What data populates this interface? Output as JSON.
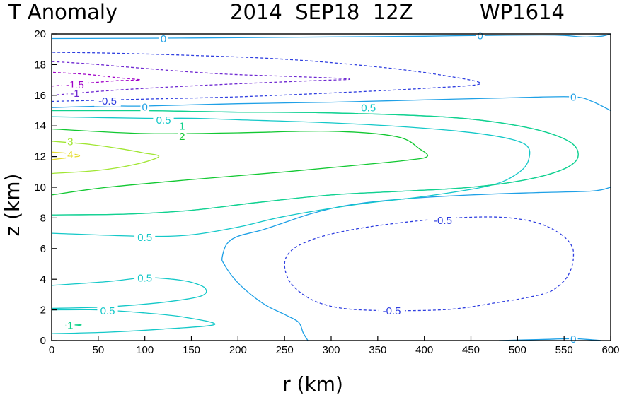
{
  "chart_data": {
    "type": "contour",
    "title": {
      "variable": "T Anomaly",
      "datetime": "2014  SEP18  12Z",
      "storm_id": "WP1614"
    },
    "xlabel": "r (km)",
    "ylabel": "z (km)",
    "xlim": [
      0,
      600
    ],
    "ylim": [
      0,
      20
    ],
    "x_ticks": [
      "0",
      "50",
      "100",
      "150",
      "200",
      "250",
      "300",
      "350",
      "400",
      "450",
      "500",
      "550",
      "600"
    ],
    "y_ticks": [
      "0",
      "2",
      "4",
      "6",
      "8",
      "10",
      "12",
      "14",
      "16",
      "18",
      "20"
    ],
    "colors": {
      "c_neg15": "#a000c8",
      "c_neg1": "#6e28d2",
      "c_neg05": "#2e3ee0",
      "c_0": "#1ea0e6",
      "c_05": "#14c8c8",
      "c_1": "#12d28c",
      "c_2": "#12c832",
      "c_3": "#a0e632",
      "c_4": "#e6dc32"
    },
    "contours": [
      {
        "level": -1.5,
        "color": "c_neg15",
        "dashed": true,
        "closed": false,
        "points": [
          [
            0,
            16.6
          ],
          [
            40,
            16.8
          ],
          [
            70,
            16.95
          ],
          [
            95,
            17.0
          ],
          [
            70,
            17.15
          ],
          [
            40,
            17.35
          ],
          [
            0,
            17.5
          ]
        ]
      },
      {
        "level": -1,
        "color": "c_neg1",
        "dashed": true,
        "closed": false,
        "points": [
          [
            0,
            16.0
          ],
          [
            60,
            16.3
          ],
          [
            130,
            16.55
          ],
          [
            200,
            16.75
          ],
          [
            280,
            16.95
          ],
          [
            320,
            17.05
          ],
          [
            270,
            17.2
          ],
          [
            180,
            17.4
          ],
          [
            100,
            17.75
          ],
          [
            40,
            18.05
          ],
          [
            0,
            18.2
          ]
        ]
      },
      {
        "level": -0.5,
        "color": "c_neg05",
        "dashed": true,
        "closed": false,
        "points": [
          [
            0,
            15.6
          ],
          [
            100,
            15.75
          ],
          [
            200,
            15.9
          ],
          [
            300,
            16.15
          ],
          [
            400,
            16.45
          ],
          [
            460,
            16.75
          ],
          [
            420,
            17.3
          ],
          [
            350,
            17.85
          ],
          [
            250,
            18.35
          ],
          [
            150,
            18.6
          ],
          [
            60,
            18.75
          ],
          [
            0,
            18.8
          ]
        ]
      },
      {
        "level": -0.5,
        "color": "c_neg05",
        "dashed": true,
        "closed": true,
        "points": [
          [
            250,
            5.0
          ],
          [
            256,
            5.8
          ],
          [
            272,
            6.4
          ],
          [
            300,
            6.95
          ],
          [
            350,
            7.5
          ],
          [
            420,
            7.95
          ],
          [
            480,
            8.05
          ],
          [
            520,
            7.7
          ],
          [
            545,
            7.0
          ],
          [
            558,
            6.2
          ],
          [
            560,
            5.4
          ],
          [
            557,
            4.6
          ],
          [
            550,
            3.9
          ],
          [
            535,
            3.2
          ],
          [
            510,
            2.8
          ],
          [
            480,
            2.5
          ],
          [
            430,
            2.05
          ],
          [
            370,
            1.95
          ],
          [
            320,
            2.05
          ],
          [
            290,
            2.4
          ],
          [
            270,
            3.0
          ],
          [
            255,
            3.9
          ]
        ]
      },
      {
        "level": 0,
        "color": "c_0",
        "dashed": false,
        "closed": false,
        "points": [
          [
            0,
            19.7
          ],
          [
            100,
            19.72
          ],
          [
            200,
            19.75
          ],
          [
            300,
            19.8
          ],
          [
            400,
            19.85
          ],
          [
            460,
            19.9
          ],
          [
            540,
            19.92
          ],
          [
            570,
            19.8
          ],
          [
            590,
            19.85
          ],
          [
            600,
            20.0
          ]
        ]
      },
      {
        "level": 0,
        "color": "c_0",
        "dashed": false,
        "closed": false,
        "points": [
          [
            0,
            15.2
          ],
          [
            60,
            15.3
          ],
          [
            100,
            15.3
          ],
          [
            200,
            15.45
          ],
          [
            300,
            15.55
          ],
          [
            400,
            15.7
          ],
          [
            500,
            15.85
          ],
          [
            560,
            15.9
          ],
          [
            580,
            15.6
          ],
          [
            600,
            15.0
          ]
        ]
      },
      {
        "level": 0,
        "color": "c_0",
        "dashed": false,
        "closed": false,
        "points": [
          [
            275,
            0.0
          ],
          [
            270,
            0.5
          ],
          [
            265,
            1.2
          ],
          [
            250,
            1.7
          ],
          [
            230,
            2.3
          ],
          [
            210,
            3.2
          ],
          [
            195,
            4.1
          ],
          [
            185,
            5.0
          ],
          [
            183,
            5.4
          ],
          [
            188,
            6.3
          ],
          [
            200,
            6.8
          ],
          [
            225,
            7.2
          ],
          [
            250,
            7.7
          ],
          [
            280,
            8.3
          ],
          [
            320,
            8.85
          ],
          [
            380,
            9.25
          ],
          [
            450,
            9.5
          ],
          [
            520,
            9.65
          ],
          [
            580,
            9.75
          ],
          [
            600,
            10.0
          ]
        ]
      },
      {
        "level": 0,
        "color": "c_0",
        "dashed": false,
        "closed": false,
        "points": [
          [
            480,
            0.0
          ],
          [
            530,
            0.08
          ],
          [
            560,
            0.12
          ],
          [
            580,
            0.05
          ],
          [
            590,
            0.0
          ]
        ]
      },
      {
        "level": 0.5,
        "color": "c_05",
        "dashed": false,
        "closed": false,
        "points": [
          [
            0,
            8.2
          ],
          [
            80,
            8.25
          ],
          [
            150,
            8.5
          ],
          [
            220,
            9.0
          ],
          [
            300,
            9.5
          ],
          [
            380,
            9.75
          ],
          [
            450,
            10.0
          ],
          [
            510,
            10.5
          ],
          [
            550,
            11.2
          ],
          [
            565,
            12.0
          ],
          [
            555,
            13.0
          ],
          [
            510,
            13.9
          ],
          [
            430,
            14.55
          ],
          [
            300,
            14.85
          ],
          [
            200,
            14.9
          ],
          [
            150,
            14.95
          ],
          [
            100,
            15.0
          ],
          [
            50,
            15.0
          ],
          [
            0,
            15.0
          ]
        ]
      },
      {
        "level": 0.5,
        "color": "c_05",
        "dashed": false,
        "closed": false,
        "points": [
          [
            0,
            7.0
          ],
          [
            100,
            6.8
          ],
          [
            150,
            6.9
          ],
          [
            200,
            7.4
          ],
          [
            250,
            8.1
          ],
          [
            330,
            8.9
          ],
          [
            400,
            9.4
          ],
          [
            470,
            10.1
          ],
          [
            500,
            10.9
          ],
          [
            512,
            11.8
          ],
          [
            508,
            12.8
          ],
          [
            470,
            13.4
          ],
          [
            400,
            13.85
          ],
          [
            300,
            14.2
          ],
          [
            200,
            14.4
          ],
          [
            150,
            14.5
          ],
          [
            100,
            14.5
          ],
          [
            0,
            14.6
          ]
        ]
      },
      {
        "level": 0.5,
        "color": "c_05",
        "dashed": false,
        "closed": false,
        "points": [
          [
            0,
            3.6
          ],
          [
            60,
            3.85
          ],
          [
            100,
            4.1
          ],
          [
            130,
            4.0
          ],
          [
            150,
            3.8
          ],
          [
            165,
            3.4
          ],
          [
            160,
            2.9
          ],
          [
            120,
            2.5
          ],
          [
            60,
            2.2
          ],
          [
            0,
            2.1
          ]
        ]
      },
      {
        "level": 0.5,
        "color": "c_05",
        "dashed": false,
        "closed": false,
        "points": [
          [
            0,
            2.0
          ],
          [
            50,
            2.0
          ],
          [
            100,
            1.8
          ],
          [
            140,
            1.55
          ],
          [
            175,
            1.05
          ],
          [
            120,
            0.75
          ],
          [
            60,
            0.55
          ],
          [
            0,
            0.45
          ]
        ]
      },
      {
        "level": 1,
        "color": "c_1",
        "dashed": false,
        "closed": false,
        "points": [
          [
            0,
            8.2
          ],
          [
            80,
            8.25
          ],
          [
            150,
            8.5
          ],
          [
            220,
            9.0
          ],
          [
            300,
            9.5
          ],
          [
            380,
            9.75
          ],
          [
            450,
            10.0
          ],
          [
            510,
            10.5
          ],
          [
            550,
            11.2
          ],
          [
            565,
            12.0
          ],
          [
            555,
            13.0
          ],
          [
            510,
            13.9
          ],
          [
            430,
            14.55
          ],
          [
            300,
            14.85
          ],
          [
            200,
            14.9
          ],
          [
            150,
            14.95
          ],
          [
            100,
            15.0
          ],
          [
            50,
            15.0
          ],
          [
            0,
            15.0
          ]
        ]
      },
      {
        "level": 1,
        "color": "c_1",
        "dashed": false,
        "closed": false,
        "points": [
          [
            15,
            1.0
          ],
          [
            22,
            1.06
          ],
          [
            32,
            1.02
          ],
          [
            22,
            0.95
          ],
          [
            15,
            1.0
          ]
        ]
      },
      {
        "level": 2,
        "color": "c_2",
        "dashed": false,
        "closed": false,
        "points": [
          [
            0,
            9.5
          ],
          [
            60,
            10.0
          ],
          [
            150,
            10.5
          ],
          [
            250,
            11.0
          ],
          [
            330,
            11.45
          ],
          [
            380,
            11.75
          ],
          [
            403,
            12.0
          ],
          [
            395,
            12.5
          ],
          [
            370,
            13.3
          ],
          [
            300,
            13.65
          ],
          [
            200,
            13.55
          ],
          [
            100,
            13.5
          ],
          [
            0,
            13.8
          ]
        ]
      },
      {
        "level": 3,
        "color": "c_3",
        "dashed": false,
        "closed": false,
        "points": [
          [
            0,
            10.9
          ],
          [
            50,
            11.1
          ],
          [
            90,
            11.5
          ],
          [
            115,
            12.0
          ],
          [
            98,
            12.25
          ],
          [
            70,
            12.55
          ],
          [
            40,
            12.8
          ],
          [
            0,
            13.0
          ]
        ]
      },
      {
        "level": 4,
        "color": "c_4",
        "dashed": false,
        "closed": false,
        "points": [
          [
            0,
            11.8
          ],
          [
            20,
            11.95
          ],
          [
            30,
            12.05
          ],
          [
            20,
            12.2
          ],
          [
            0,
            12.3
          ]
        ]
      }
    ],
    "contour_labels": [
      {
        "text": "0",
        "color": "c_0",
        "x": 120,
        "y": 19.7
      },
      {
        "text": "0",
        "color": "c_0",
        "x": 460,
        "y": 19.9
      },
      {
        "text": "0",
        "color": "c_0",
        "x": 560,
        "y": 15.9
      },
      {
        "text": "0",
        "color": "c_0",
        "x": 100,
        "y": 15.25
      },
      {
        "text": "0",
        "color": "c_0",
        "x": 560,
        "y": 0.12
      },
      {
        "text": "0.5",
        "color": "c_05",
        "x": 340,
        "y": 15.2
      },
      {
        "text": "0.5",
        "color": "c_05",
        "x": 120,
        "y": 14.4
      },
      {
        "text": "0.5",
        "color": "c_05",
        "x": 100,
        "y": 6.75
      },
      {
        "text": "0.5",
        "color": "c_05",
        "x": 100,
        "y": 4.1
      },
      {
        "text": "0.5",
        "color": "c_05",
        "x": 60,
        "y": 1.95
      },
      {
        "text": "1",
        "color": "c_1",
        "x": 140,
        "y": 14.0
      },
      {
        "text": "1",
        "color": "c_1",
        "x": 20,
        "y": 1.02
      },
      {
        "text": "2",
        "color": "c_2",
        "x": 140,
        "y": 13.35
      },
      {
        "text": "3",
        "color": "c_3",
        "x": 20,
        "y": 13.0
      },
      {
        "text": "4",
        "color": "c_4",
        "x": 20,
        "y": 12.15
      },
      {
        "text": "-1.5",
        "color": "c_neg15",
        "x": 25,
        "y": 16.7
      },
      {
        "text": "-1",
        "color": "c_neg1",
        "x": 25,
        "y": 16.15
      },
      {
        "text": "-0.5",
        "color": "c_neg05",
        "x": 60,
        "y": 15.65
      },
      {
        "text": "-0.5",
        "color": "c_neg05",
        "x": 420,
        "y": 7.85
      },
      {
        "text": "-0.5",
        "color": "c_neg05",
        "x": 365,
        "y": 1.95
      }
    ]
  }
}
